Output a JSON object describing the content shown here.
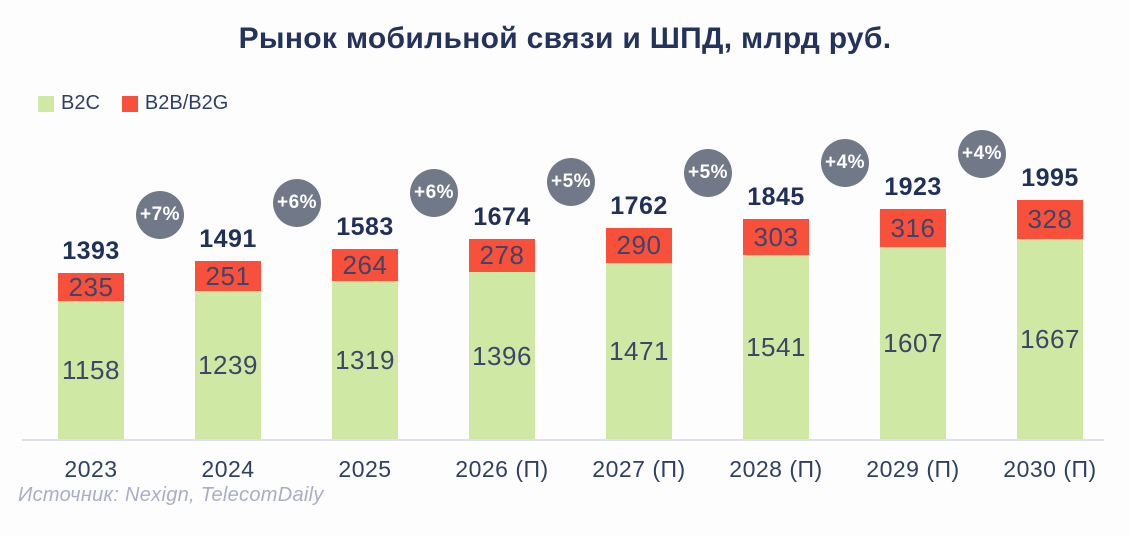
{
  "title": "Рынок мобильной связи и ШПД, млрд руб.",
  "legend": [
    {
      "label": "B2C",
      "color": "#cfe8a4"
    },
    {
      "label": "B2B/B2G",
      "color": "#f8503a"
    }
  ],
  "source": "Источник: Nexign, TelecomDaily",
  "chart_data": {
    "type": "bar",
    "stacked": true,
    "title": "Рынок мобильной связи и ШПД, млрд руб.",
    "unit": "млрд руб.",
    "categories": [
      "2023",
      "2024",
      "2025",
      "2026 (П)",
      "2027 (П)",
      "2028 (П)",
      "2029 (П)",
      "2030 (П)"
    ],
    "series": [
      {
        "name": "B2C",
        "color": "#cfe8a4",
        "values": [
          1158,
          1239,
          1319,
          1396,
          1471,
          1541,
          1607,
          1667
        ]
      },
      {
        "name": "B2B/B2G",
        "color": "#f8503a",
        "values": [
          235,
          251,
          264,
          278,
          290,
          303,
          316,
          328
        ]
      }
    ],
    "totals": [
      1393,
      1491,
      1583,
      1674,
      1762,
      1845,
      1923,
      1995
    ],
    "growth_labels": [
      "+7%",
      "+6%",
      "+6%",
      "+5%",
      "+5%",
      "+4%",
      "+4%"
    ],
    "growth_bubble_color": "#717887",
    "ylim": [
      0,
      2100
    ],
    "grid": false,
    "legend_position": "top-left",
    "value_labels": "inside-segments",
    "total_labels": "above-bars"
  }
}
